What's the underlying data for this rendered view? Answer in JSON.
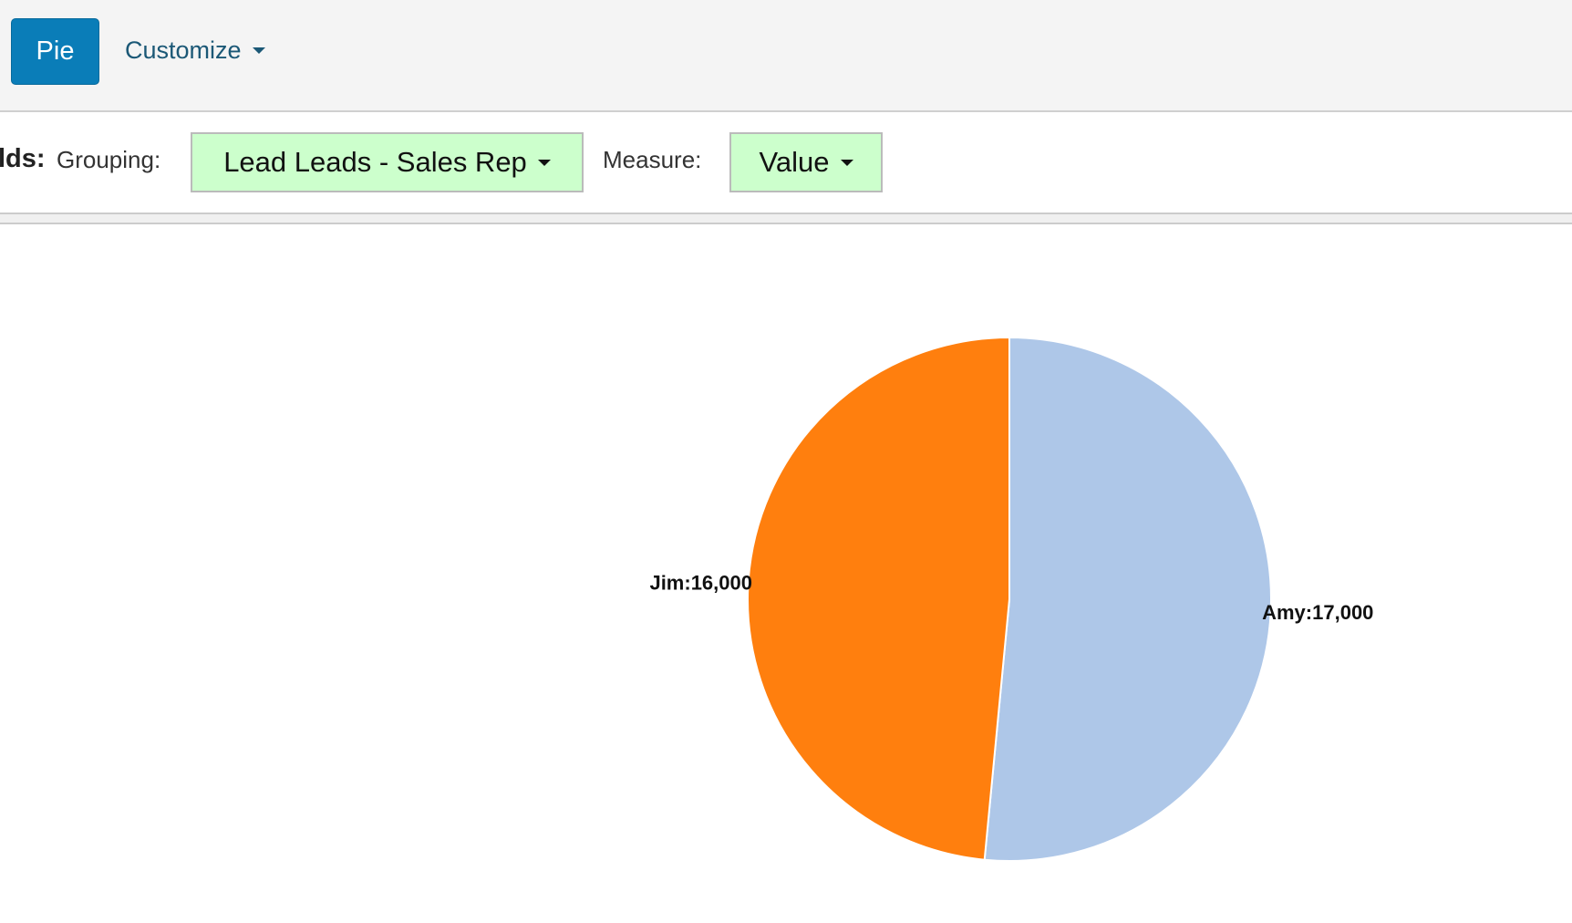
{
  "toolbar": {
    "chart_button": "Pie",
    "customize": "Customize"
  },
  "fields": {
    "label": "lds:",
    "grouping_label": "Grouping:",
    "grouping_value": "Lead Leads - Sales Rep",
    "measure_label": "Measure:",
    "measure_value": "Value"
  },
  "chart_data": {
    "type": "pie",
    "values": [
      17000,
      16000
    ],
    "value_labels": [
      "Amy:17,000",
      "Jim:16,000"
    ],
    "colors": [
      "#aec7e8",
      "#ff7f0e"
    ]
  }
}
